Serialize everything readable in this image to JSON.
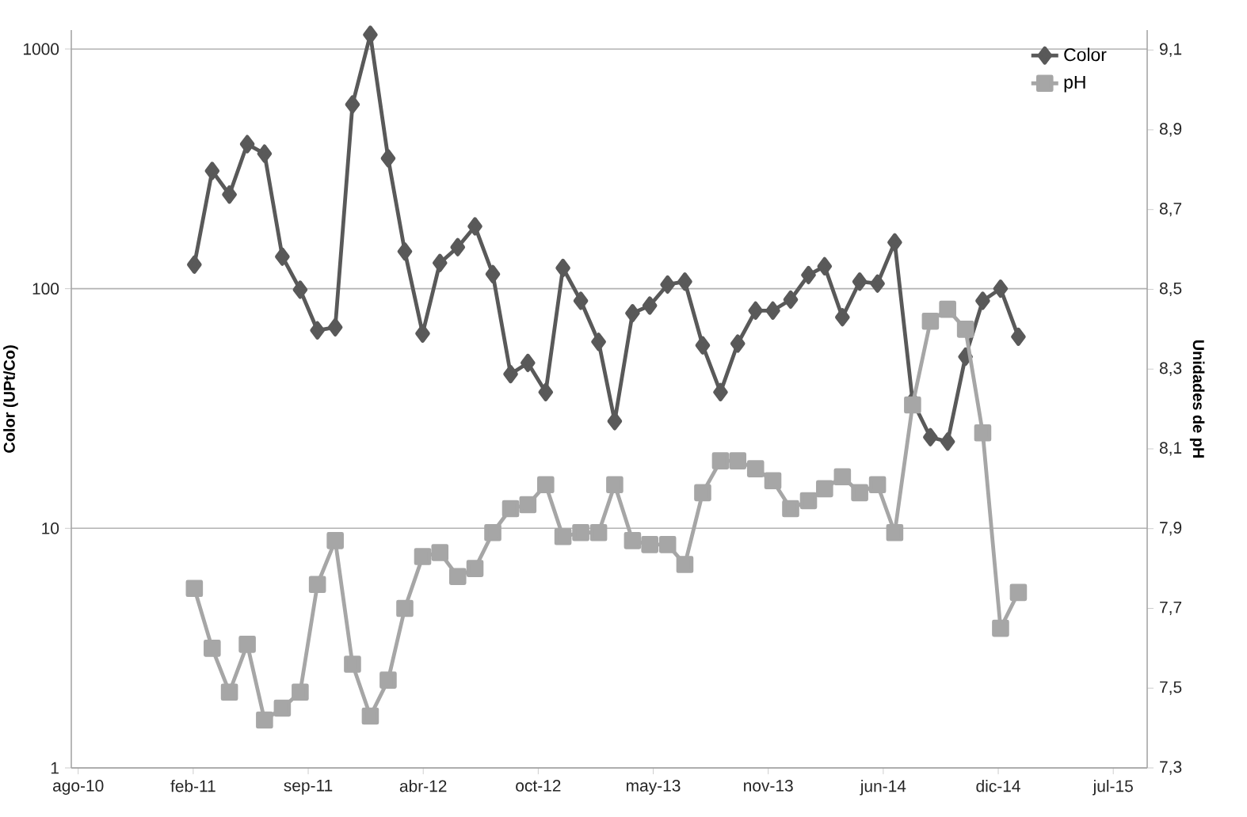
{
  "chart_data": {
    "type": "line",
    "ylabel": "Color (UPt/Co)",
    "y2label": "Unidades de pH",
    "x": [
      "2011-03",
      "2011-04",
      "2011-05",
      "2011-06",
      "2011-07",
      "2011-08",
      "2011-09",
      "2011-10",
      "2011-11",
      "2011-12",
      "2012-01",
      "2012-02",
      "2012-03",
      "2012-04",
      "2012-05",
      "2012-06",
      "2012-07",
      "2012-08",
      "2012-09",
      "2012-10",
      "2012-11",
      "2012-12",
      "2013-01",
      "2013-02",
      "2013-03",
      "2013-04",
      "2013-05",
      "2013-06",
      "2013-07",
      "2013-08",
      "2013-09",
      "2013-10",
      "2013-11",
      "2013-12",
      "2014-01",
      "2014-02",
      "2014-03",
      "2014-04",
      "2014-05",
      "2014-06",
      "2014-07",
      "2014-08",
      "2014-09",
      "2014-10",
      "2014-11",
      "2014-12",
      "2015-01",
      "2015-02"
    ],
    "series": [
      {
        "name": "Color",
        "color": "#595959",
        "marker": "diamond",
        "values": [
          126,
          310,
          247,
          401,
          366,
          136,
          99,
          67,
          69,
          587,
          1147,
          350,
          143,
          65,
          128,
          149,
          182,
          115,
          44,
          49,
          37,
          122,
          89,
          60,
          28,
          79,
          85,
          104,
          107,
          58,
          37,
          59,
          81,
          81,
          90,
          114,
          124,
          76,
          107,
          105,
          156,
          34,
          24,
          23,
          52,
          89,
          100,
          63
        ]
      },
      {
        "name": "pH",
        "color": "#a6a6a6",
        "marker": "square",
        "axis": "y2",
        "values": [
          7.75,
          7.6,
          7.49,
          7.61,
          7.42,
          7.45,
          7.49,
          7.76,
          7.87,
          7.56,
          7.43,
          7.52,
          7.7,
          7.83,
          7.84,
          7.78,
          7.8,
          7.89,
          7.95,
          7.96,
          8.01,
          7.88,
          7.89,
          7.89,
          8.01,
          7.87,
          7.86,
          7.86,
          7.81,
          7.99,
          8.07,
          8.07,
          8.05,
          8.02,
          7.95,
          7.97,
          8.0,
          8.03,
          7.99,
          8.01,
          7.89,
          8.21,
          8.42,
          8.45,
          8.4,
          8.14,
          7.65,
          7.74
        ]
      }
    ],
    "xlim": [
      "2010-07-30",
      "2015-09-13"
    ],
    "xticks": [
      {
        "value": "2010-08-11",
        "label": "ago-10"
      },
      {
        "value": "2011-02-27",
        "label": "feb-11"
      },
      {
        "value": "2011-09-15",
        "label": "sep-11"
      },
      {
        "value": "2012-04-02",
        "label": "abr-12"
      },
      {
        "value": "2012-10-19",
        "label": "oct-12"
      },
      {
        "value": "2013-05-07",
        "label": "may-13"
      },
      {
        "value": "2013-11-23",
        "label": "nov-13"
      },
      {
        "value": "2014-06-11",
        "label": "jun-14"
      },
      {
        "value": "2014-12-28",
        "label": "dic-14"
      },
      {
        "value": "2015-07-16",
        "label": "jul-15"
      }
    ],
    "ylim": [
      1,
      1200
    ],
    "yticks": [
      1,
      10,
      100,
      1000
    ],
    "log": "y",
    "y2lim": [
      7.3,
      9.15
    ],
    "y2ticks": [
      {
        "value": 7.3,
        "label": "7,3"
      },
      {
        "value": 7.5,
        "label": "7,5"
      },
      {
        "value": 7.7,
        "label": "7,7"
      },
      {
        "value": 7.9,
        "label": "7,9"
      },
      {
        "value": 8.1,
        "label": "8,1"
      },
      {
        "value": 8.3,
        "label": "8,3"
      },
      {
        "value": 8.5,
        "label": "8,5"
      },
      {
        "value": 8.7,
        "label": "8,7"
      },
      {
        "value": 8.9,
        "label": "8,9"
      },
      {
        "value": 9.1,
        "label": "9,1"
      }
    ],
    "grid": "y",
    "legend": "top right",
    "line_style": "solid"
  }
}
